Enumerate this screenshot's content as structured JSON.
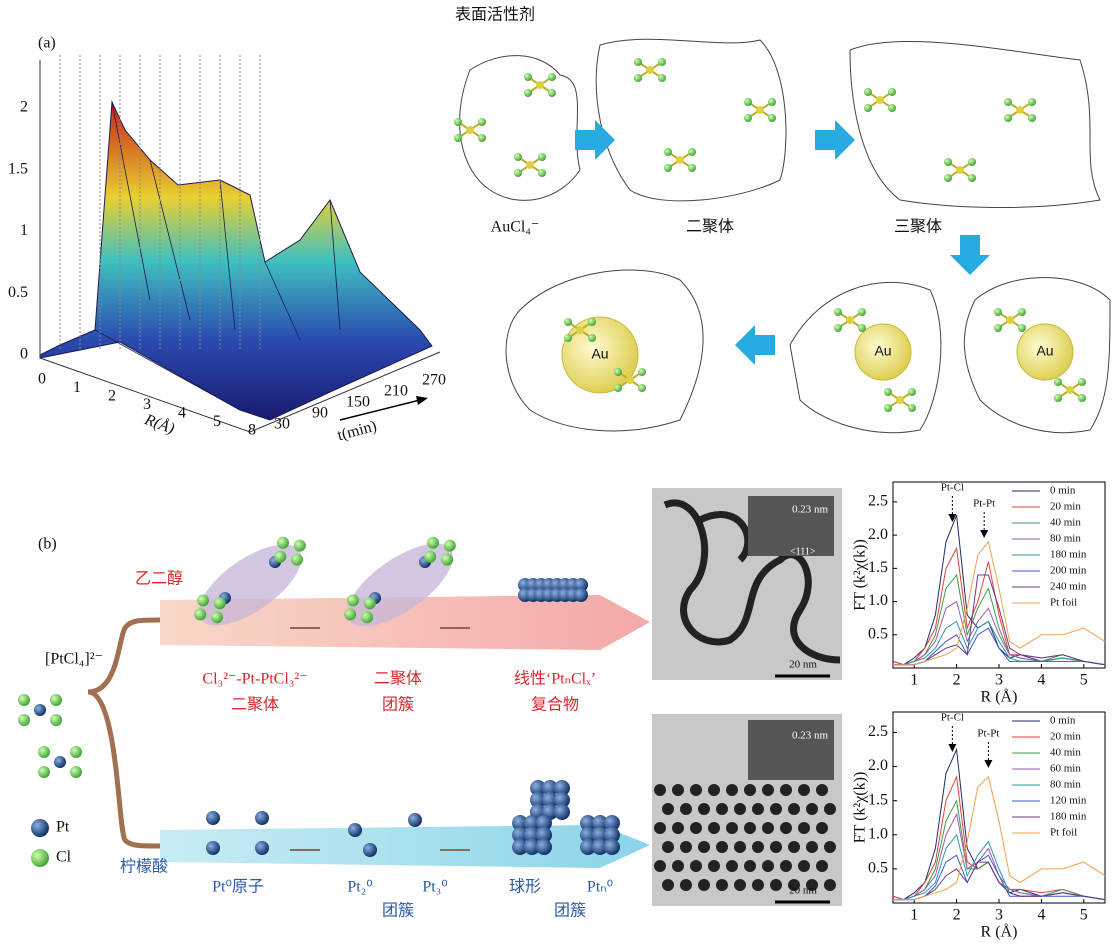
{
  "panel_a": {
    "label": "(a)",
    "surface": {
      "z_ticks": [
        0,
        0.5,
        1,
        1.5,
        2
      ],
      "r_ticks": [
        0,
        1,
        2,
        3,
        4,
        5,
        8
      ],
      "r_label": "R(Å)",
      "t_ticks": [
        30,
        90,
        150,
        210,
        270
      ],
      "t_label": "t(min)"
    },
    "scheme": {
      "surfactant": "表面活性剂",
      "stages": [
        "AuCl₄⁻",
        "二聚体",
        "三聚体"
      ],
      "particle": "Au"
    }
  },
  "panel_b": {
    "label": "(b)",
    "precursor": "[PtCl₄]²⁻",
    "route_top": "乙二醇",
    "route_bottom": "柠檬酸",
    "top_stages": [
      [
        "Cl₃²⁻-Pt-PtCl₃²⁻",
        "二聚体"
      ],
      [
        "二聚体",
        "团簇"
      ],
      [
        "线性‘PtₙClₓ’",
        "复合物"
      ]
    ],
    "bottom_stages": [
      "Pt⁰原子",
      "Pt₂⁰",
      "Pt₃⁰",
      "团簇",
      "球形",
      "Ptₙ⁰",
      "团簇"
    ],
    "legend": [
      "Pt",
      "Cl"
    ],
    "tem_top": {
      "lattice": "0.23 nm",
      "plane": "<111>",
      "scale": "20 nm"
    },
    "tem_bottom": {
      "lattice": "0.23 nm",
      "scale": "20 nm"
    }
  },
  "chart_data": [
    {
      "type": "line",
      "xlabel": "R (Å)",
      "ylabel": "FT (k²χ(k))",
      "xlim": [
        0.5,
        5.5
      ],
      "xticks": [
        1,
        2,
        3,
        4,
        5
      ],
      "ylim": [
        0,
        2.8
      ],
      "yticks": [
        0.5,
        {
          "value": 1,
          "label": "1.0"
        },
        1.5,
        {
          "value": 2,
          "label": "2.0"
        },
        2.5
      ],
      "annotations": [
        {
          "text": "Pt-Cl",
          "x": 1.9
        },
        {
          "text": "Pt-Pt",
          "x": 2.65
        }
      ],
      "x": [
        0.5,
        0.75,
        1,
        1.25,
        1.5,
        1.75,
        2,
        2.25,
        2.5,
        2.75,
        3,
        3.25,
        3.5,
        4,
        4.5,
        5,
        5.5
      ],
      "series": [
        {
          "name": "0 min",
          "color": "#1f2a6b",
          "values": [
            0.1,
            0.05,
            0.15,
            0.3,
            0.8,
            1.9,
            2.3,
            0.8,
            0.6,
            0.7,
            0.3,
            0.15,
            0.2,
            0.1,
            0.15,
            0.1,
            0.05
          ]
        },
        {
          "name": "20 min",
          "color": "#e0403a",
          "values": [
            0.1,
            0.05,
            0.1,
            0.3,
            0.6,
            1.5,
            1.8,
            0.6,
            1.0,
            1.6,
            0.8,
            0.2,
            0.2,
            0.15,
            0.2,
            0.1,
            0.05
          ]
        },
        {
          "name": "40 min",
          "color": "#3a9a4a",
          "values": [
            0.05,
            0.05,
            0.1,
            0.2,
            0.5,
            1.2,
            1.4,
            0.5,
            0.9,
            1.2,
            0.6,
            0.2,
            0.15,
            0.1,
            0.2,
            0.1,
            0.05
          ]
        },
        {
          "name": "80 min",
          "color": "#9a5ab0",
          "values": [
            0.05,
            0.05,
            0.1,
            0.2,
            0.4,
            0.9,
            1.0,
            0.4,
            0.7,
            0.9,
            0.5,
            0.2,
            0.15,
            0.1,
            0.15,
            0.1,
            0.05
          ]
        },
        {
          "name": "180 min",
          "color": "#2a9aa0",
          "values": [
            0.05,
            0.05,
            0.1,
            0.15,
            0.3,
            0.6,
            0.7,
            0.3,
            0.6,
            0.7,
            0.4,
            0.15,
            0.1,
            0.1,
            0.15,
            0.1,
            0.05
          ]
        },
        {
          "name": "200 min",
          "color": "#3a5ad0",
          "values": [
            0.05,
            0.05,
            0.05,
            0.1,
            0.25,
            0.4,
            0.5,
            0.2,
            0.5,
            0.6,
            0.3,
            0.1,
            0.1,
            0.1,
            0.1,
            0.1,
            0.05
          ]
        },
        {
          "name": "240 min",
          "color": "#6a3a8a",
          "values": [
            0.05,
            0.05,
            0.05,
            0.1,
            0.2,
            0.3,
            0.35,
            0.2,
            1.4,
            1.4,
            0.9,
            0.3,
            0.2,
            0.15,
            0.2,
            0.1,
            0.05
          ]
        },
        {
          "name": "Pt foil",
          "color": "#f0a050",
          "values": [
            0.05,
            0.05,
            0.05,
            0.1,
            0.15,
            0.2,
            0.3,
            0.9,
            1.7,
            1.9,
            1.2,
            0.4,
            0.3,
            0.5,
            0.5,
            0.6,
            0.4
          ]
        }
      ]
    },
    {
      "type": "line",
      "xlabel": "R (Å)",
      "ylabel": "FT (k²χ(k))",
      "xlim": [
        0.5,
        5.5
      ],
      "xticks": [
        1,
        2,
        3,
        4,
        5
      ],
      "ylim": [
        0,
        2.8
      ],
      "yticks": [
        0.5,
        {
          "value": 1,
          "label": "1.0"
        },
        1.5,
        {
          "value": 2,
          "label": "2.0"
        },
        2.5
      ],
      "annotations": [
        {
          "text": "Pt-Cl",
          "x": 1.9
        },
        {
          "text": "Pt-Pt",
          "x": 2.75
        }
      ],
      "x": [
        0.5,
        0.75,
        1,
        1.25,
        1.5,
        1.75,
        2,
        2.25,
        2.5,
        2.75,
        3,
        3.25,
        3.5,
        4,
        4.5,
        5,
        5.5
      ],
      "series": [
        {
          "name": "0 min",
          "color": "#1f2a6b",
          "values": [
            0.1,
            0.05,
            0.15,
            0.3,
            0.8,
            1.9,
            2.25,
            0.8,
            0.5,
            0.6,
            0.3,
            0.15,
            0.2,
            0.1,
            0.15,
            0.1,
            0.05
          ]
        },
        {
          "name": "20 min",
          "color": "#e0403a",
          "values": [
            0.1,
            0.05,
            0.1,
            0.3,
            0.6,
            1.5,
            1.85,
            0.6,
            0.5,
            0.6,
            0.3,
            0.2,
            0.2,
            0.15,
            0.2,
            0.1,
            0.05
          ]
        },
        {
          "name": "40 min",
          "color": "#3a9a4a",
          "values": [
            0.05,
            0.05,
            0.1,
            0.2,
            0.5,
            1.2,
            1.5,
            0.5,
            0.5,
            0.6,
            0.3,
            0.2,
            0.15,
            0.1,
            0.2,
            0.1,
            0.05
          ]
        },
        {
          "name": "60 min",
          "color": "#9a5ab0",
          "values": [
            0.05,
            0.05,
            0.1,
            0.2,
            0.4,
            1.0,
            1.3,
            0.5,
            0.6,
            0.8,
            0.4,
            0.2,
            0.15,
            0.1,
            0.15,
            0.1,
            0.05
          ]
        },
        {
          "name": "80 min",
          "color": "#2a9aa0",
          "values": [
            0.05,
            0.05,
            0.1,
            0.15,
            0.3,
            0.8,
            1.0,
            0.4,
            0.7,
            0.9,
            0.5,
            0.15,
            0.1,
            0.1,
            0.15,
            0.1,
            0.05
          ]
        },
        {
          "name": "120 min",
          "color": "#3a5ad0",
          "values": [
            0.05,
            0.05,
            0.05,
            0.1,
            0.25,
            0.6,
            0.7,
            0.3,
            0.6,
            0.7,
            0.4,
            0.1,
            0.1,
            0.1,
            0.1,
            0.1,
            0.05
          ]
        },
        {
          "name": "180 min",
          "color": "#6a3a8a",
          "values": [
            0.05,
            0.05,
            0.05,
            0.1,
            0.2,
            0.4,
            0.5,
            0.3,
            0.6,
            0.6,
            0.3,
            0.15,
            0.1,
            0.1,
            0.15,
            0.1,
            0.05
          ]
        },
        {
          "name": "Pt foil",
          "color": "#f0a050",
          "values": [
            0.05,
            0.05,
            0.05,
            0.1,
            0.15,
            0.2,
            0.3,
            0.9,
            1.7,
            1.85,
            1.2,
            0.4,
            0.3,
            0.5,
            0.5,
            0.6,
            0.4
          ]
        }
      ]
    }
  ]
}
